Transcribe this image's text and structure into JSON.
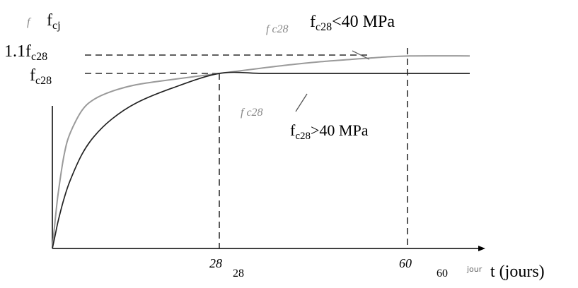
{
  "chart_data": {
    "type": "line",
    "xlabel": "t (jours)",
    "ylabel": "fcj",
    "ylabel_parts": {
      "base": "f",
      "sub": "cj"
    },
    "xlim": [
      0,
      70
    ],
    "ylim": [
      0,
      1.1
    ],
    "x_ticks": [
      {
        "value": 28,
        "label": "28",
        "italic_label": "28"
      },
      {
        "value": 60,
        "label": "60",
        "italic_label": "60"
      }
    ],
    "x_axis_faint_label": "jour",
    "y_ticks": [
      {
        "value": 1.1,
        "label": "1.1fc28",
        "prefix": "1.1",
        "base": "f",
        "sub": "c28"
      },
      {
        "value": 1.0,
        "label": "fc28",
        "prefix": "",
        "base": "f",
        "sub": "c28"
      }
    ],
    "ghost_labels": {
      "y_axis": "f",
      "upper_curve": "f c28",
      "lower_curve": "f c28"
    },
    "series": [
      {
        "label_parts": {
          "base": "f",
          "sub": "c28",
          "rest": "<40 MPa"
        },
        "color": "#9a9a9a",
        "x": [
          0,
          0.5,
          1,
          2,
          3,
          5,
          7,
          10,
          14,
          20,
          28,
          35,
          40,
          45,
          50,
          55,
          60,
          70
        ],
        "y": [
          0,
          0.17,
          0.32,
          0.54,
          0.66,
          0.79,
          0.852,
          0.898,
          0.935,
          0.965,
          1.0,
          1.03,
          1.05,
          1.067,
          1.08,
          1.092,
          1.1,
          1.1
        ]
      },
      {
        "label_parts": {
          "base": "f",
          "sub": "c28",
          "rest": ">40 MPa"
        },
        "color": "#222222",
        "x": [
          0,
          0.5,
          1,
          2,
          3,
          5,
          7,
          10,
          14,
          20,
          28,
          35,
          40,
          45,
          50,
          55,
          60,
          70
        ],
        "y": [
          0,
          0.08,
          0.16,
          0.29,
          0.39,
          0.54,
          0.64,
          0.74,
          0.83,
          0.915,
          1.0,
          1.0,
          1.0,
          1.0,
          1.0,
          1.0,
          1.0,
          1.0
        ]
      }
    ],
    "grid": false,
    "legend": "none"
  }
}
